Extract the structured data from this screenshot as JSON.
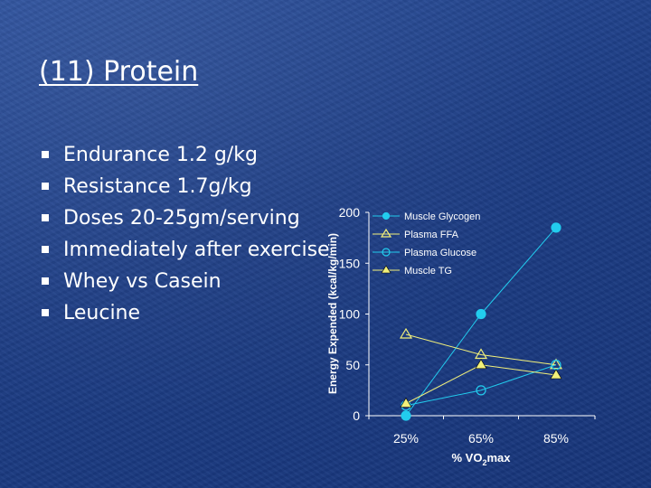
{
  "slide": {
    "title": "(11) Protein",
    "bullets": [
      "Endurance 1.2 g/kg",
      "Resistance 1.7g/kg",
      "Doses 20-25gm/serving",
      "Immediately after exercise",
      "Whey vs Casein",
      "Leucine"
    ]
  },
  "chart_data": {
    "type": "line",
    "categories": [
      "25%",
      "65%",
      "85%"
    ],
    "xlabel_main": "% VO",
    "xlabel_sub": "2",
    "xlabel_tail": "max",
    "ylabel": "Energy Expended (kcal/kg/min)",
    "ylim": [
      0,
      200
    ],
    "yticks": [
      "0",
      "50",
      "100",
      "150",
      "200"
    ],
    "grid": false,
    "legend_position": "top-right",
    "series": [
      {
        "name": "Muscle Glycogen",
        "values": [
          0,
          100,
          185
        ],
        "marker": "circle-filled",
        "color": "#22ccee"
      },
      {
        "name": "Plasma FFA",
        "values": [
          80,
          60,
          50
        ],
        "marker": "triangle-open",
        "color": "#f2f07a"
      },
      {
        "name": "Plasma Glucose",
        "values": [
          10,
          25,
          50
        ],
        "marker": "circle-open",
        "color": "#22ccee"
      },
      {
        "name": "Muscle TG",
        "values": [
          12,
          50,
          40
        ],
        "marker": "triangle-filled",
        "color": "#f2f07a"
      }
    ]
  }
}
